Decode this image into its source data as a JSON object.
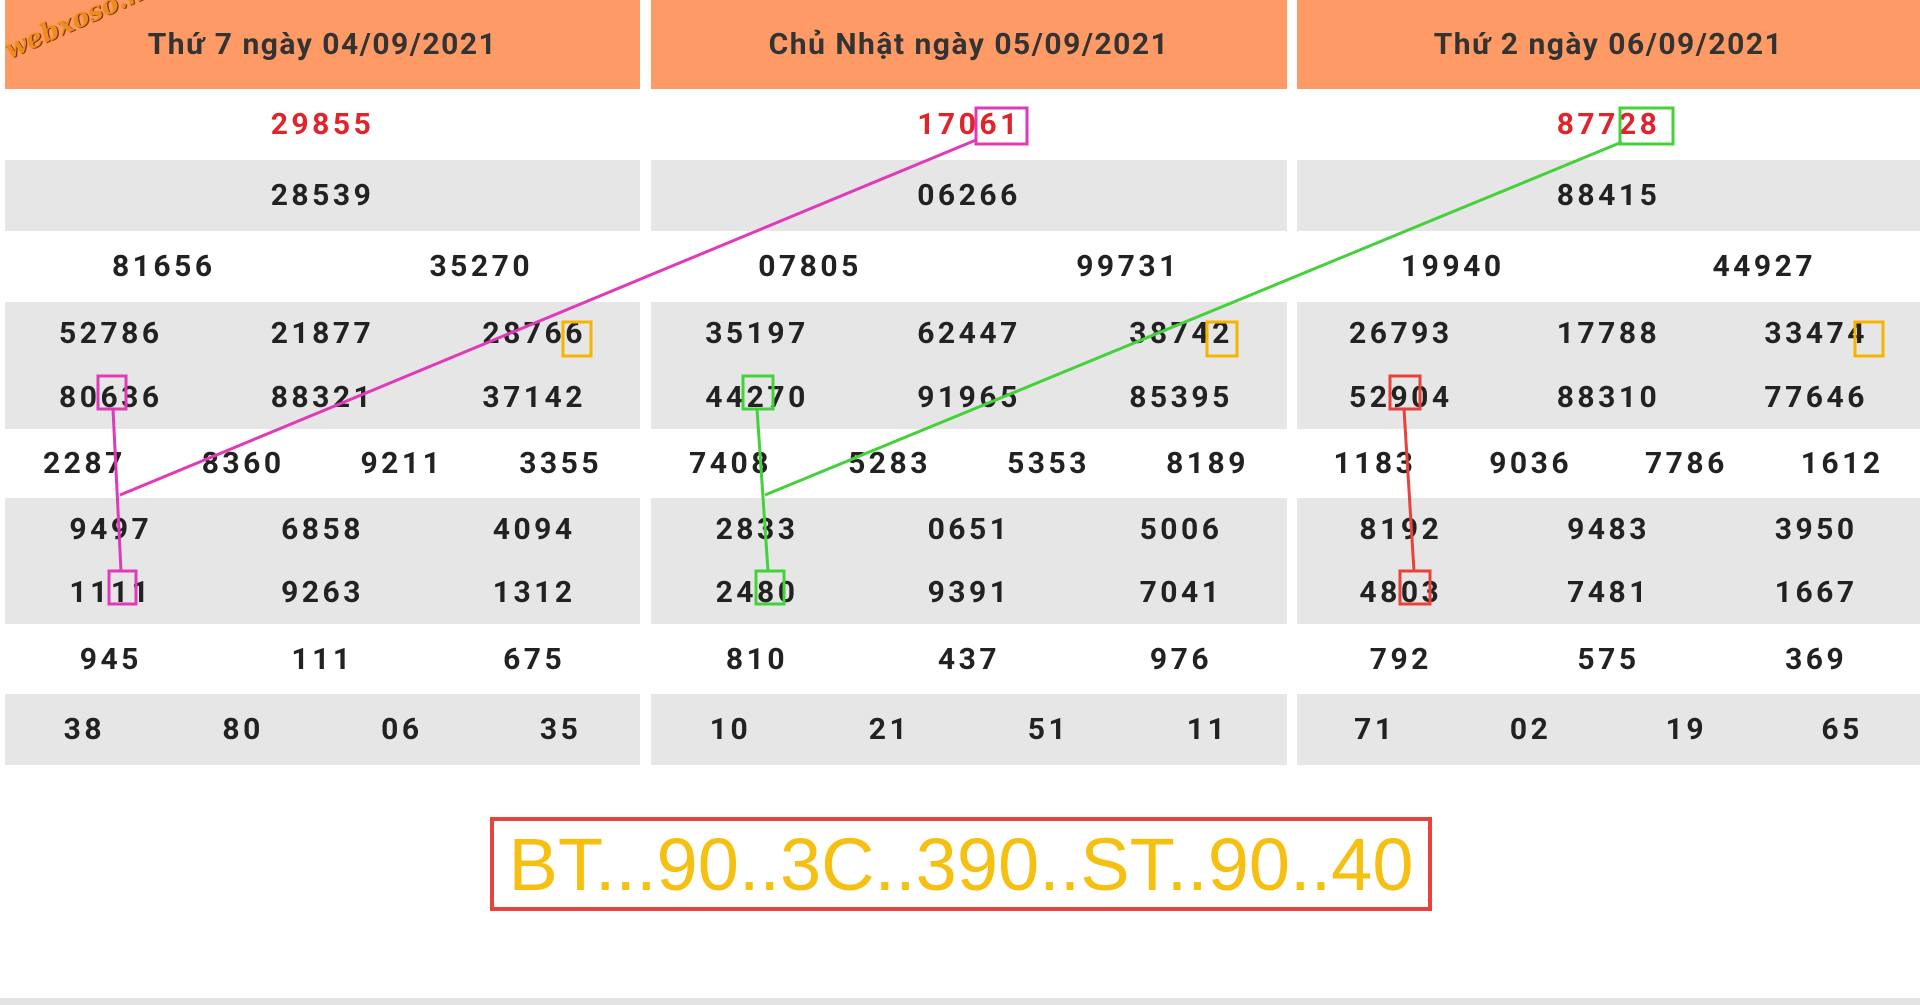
{
  "watermark": "webxoso.net",
  "columns": [
    {
      "header": "Thứ 7 ngày 04/09/2021",
      "rows": [
        [
          "29855"
        ],
        [
          "28539"
        ],
        [
          "81656",
          "35270"
        ],
        [
          "52786",
          "21877",
          "28766",
          "80636",
          "88321",
          "37142"
        ],
        [
          "2287",
          "8360",
          "9211",
          "3355"
        ],
        [
          "9497",
          "6858",
          "4094",
          "1111",
          "9263",
          "1312"
        ],
        [
          "945",
          "111",
          "675"
        ],
        [
          "38",
          "80",
          "06",
          "35"
        ]
      ]
    },
    {
      "header": "Chủ Nhật ngày 05/09/2021",
      "rows": [
        [
          "17061"
        ],
        [
          "06266"
        ],
        [
          "07805",
          "99731"
        ],
        [
          "35197",
          "62447",
          "38742",
          "44270",
          "91965",
          "85395"
        ],
        [
          "7408",
          "5283",
          "5353",
          "8189"
        ],
        [
          "2833",
          "0651",
          "5006",
          "2480",
          "9391",
          "7041"
        ],
        [
          "810",
          "437",
          "976"
        ],
        [
          "10",
          "21",
          "51",
          "11"
        ]
      ]
    },
    {
      "header": "Thứ 2 ngày 06/09/2021",
      "rows": [
        [
          "87728"
        ],
        [
          "88415"
        ],
        [
          "19940",
          "44927"
        ],
        [
          "26793",
          "17788",
          "33474",
          "52904",
          "88310",
          "77646"
        ],
        [
          "1183",
          "9036",
          "7786",
          "1612"
        ],
        [
          "8192",
          "9483",
          "3950",
          "4803",
          "7481",
          "1667"
        ],
        [
          "792",
          "575",
          "369"
        ],
        [
          "71",
          "02",
          "19",
          "65"
        ]
      ]
    }
  ],
  "prediction": "BT...90..3C..390..ST..90..40"
}
